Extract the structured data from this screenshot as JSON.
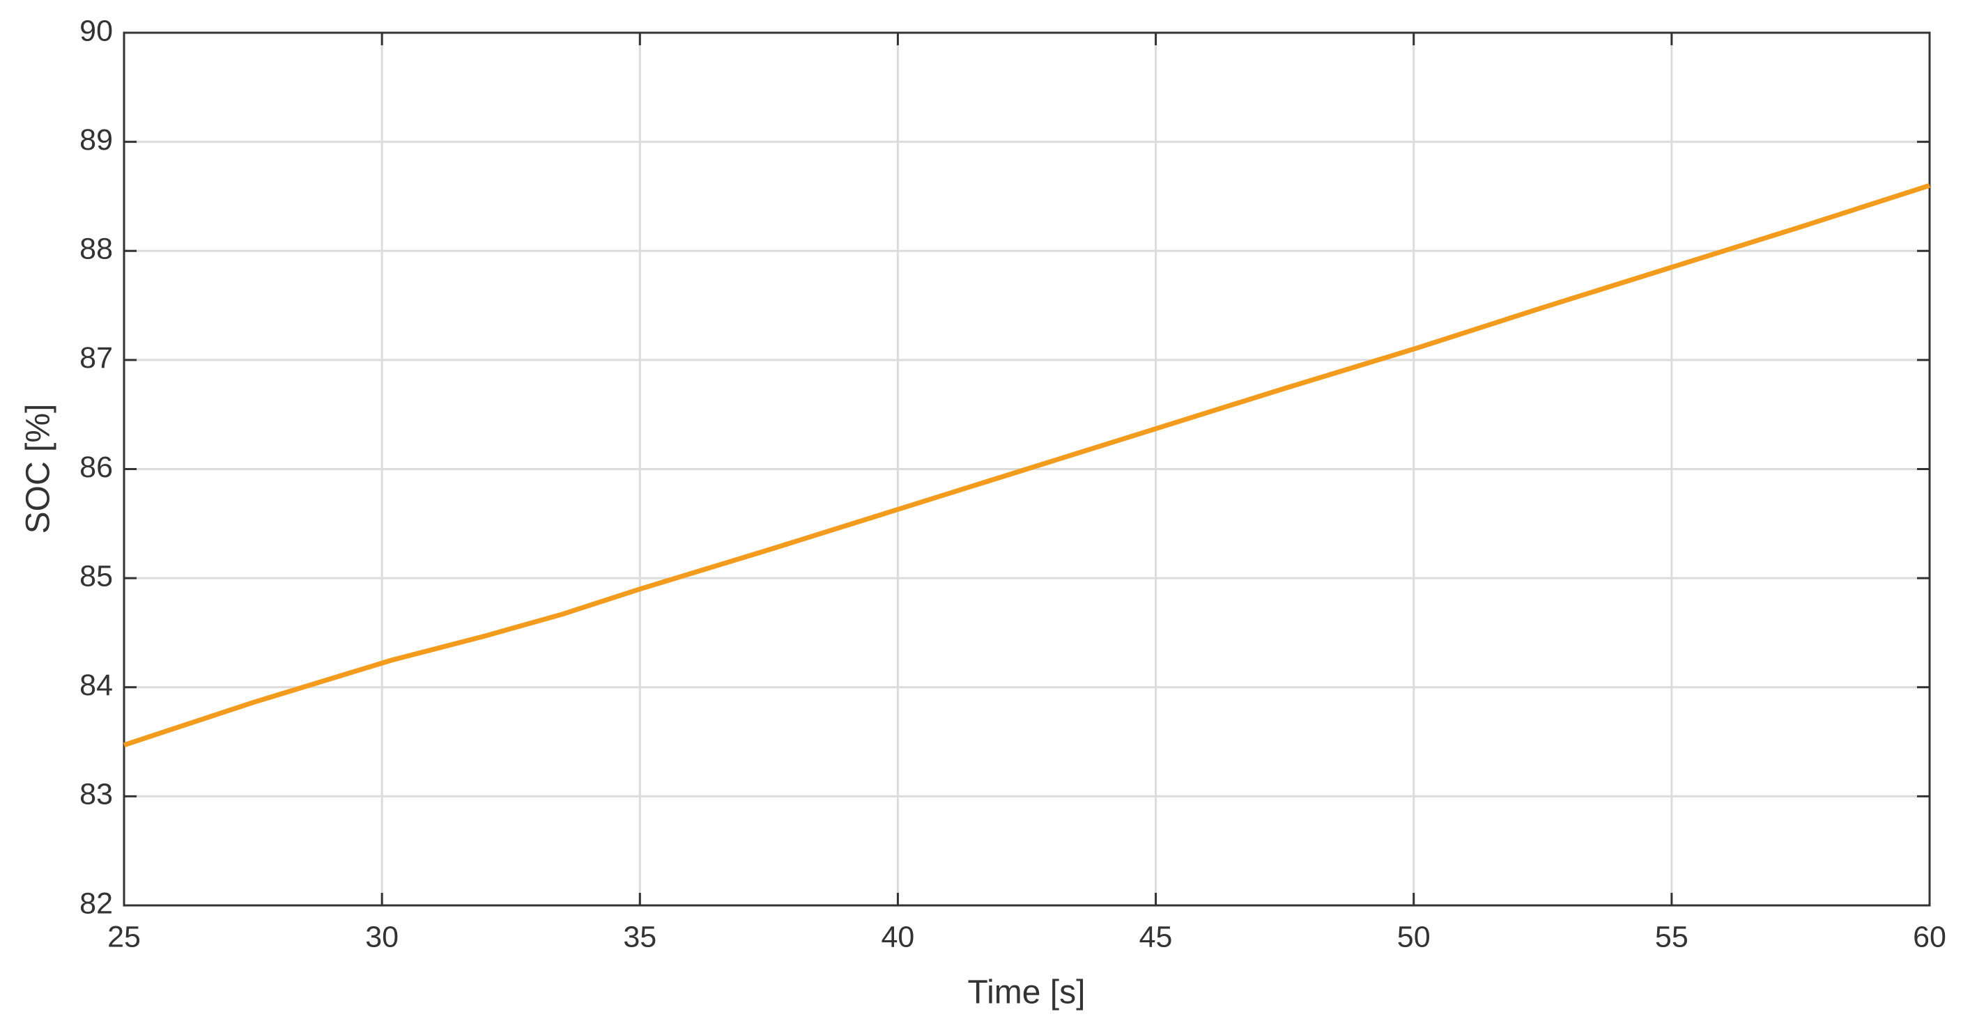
{
  "chart_data": {
    "type": "line",
    "x_label": "Time [s]",
    "y_label": "SOC [%]",
    "xlim": [
      25,
      60
    ],
    "ylim": [
      82,
      90
    ],
    "xticks": [
      25,
      30,
      35,
      40,
      45,
      50,
      55,
      60
    ],
    "yticks": [
      82,
      83,
      84,
      85,
      86,
      87,
      88,
      89,
      90
    ],
    "grid": true,
    "x": [
      25,
      27.5,
      30.2,
      32,
      33.5,
      35,
      37.5,
      40,
      42.5,
      45,
      47.5,
      50,
      52.5,
      55,
      57.5,
      60
    ],
    "series": [
      {
        "name": "SOC",
        "color": "#f29b1c",
        "values": [
          83.47,
          83.86,
          84.25,
          84.47,
          84.67,
          84.9,
          85.26,
          85.63,
          86.0,
          86.37,
          86.74,
          87.1,
          87.48,
          87.85,
          88.22,
          88.6
        ]
      }
    ]
  }
}
